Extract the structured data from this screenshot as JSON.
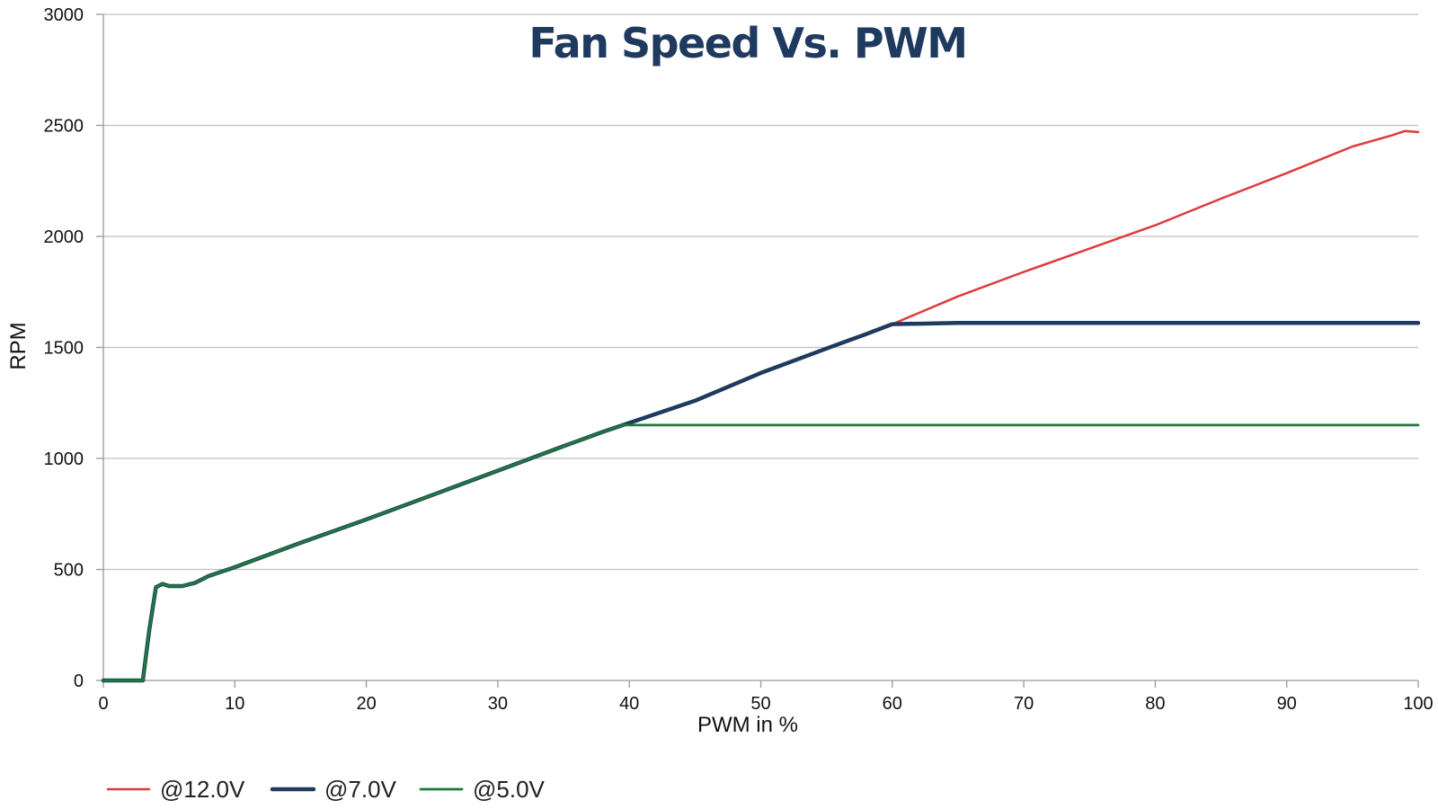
{
  "chart_data": {
    "type": "line",
    "title": "Fan Speed Vs. PWM",
    "xlabel": "PWM in %",
    "ylabel": "RPM",
    "xlim": [
      0,
      100
    ],
    "ylim": [
      0,
      3000
    ],
    "x_ticks": [
      0,
      10,
      20,
      30,
      40,
      50,
      60,
      70,
      80,
      90,
      100
    ],
    "y_ticks": [
      0,
      500,
      1000,
      1500,
      2000,
      2500,
      3000
    ],
    "x_tick_labels": [
      "0",
      "10",
      "20",
      "30",
      "40",
      "50",
      "60",
      "70",
      "80",
      "90",
      "100"
    ],
    "y_tick_labels": [
      "0",
      "500",
      "1000",
      "1500",
      "2000",
      "2500",
      "3000"
    ],
    "grid": "horizontal",
    "legend_position": "bottom-left",
    "colors": {
      "title": "#1f3a5f",
      "grid": "#c0c0c0",
      "axis": "#999999"
    },
    "series": [
      {
        "name": "@12.0V",
        "color": "#e03a3a",
        "x": [
          0,
          2.2,
          3,
          3.5,
          4,
          4.5,
          5,
          6,
          7,
          8,
          10,
          15,
          20,
          25,
          30,
          35,
          38,
          40,
          45,
          50,
          55,
          60,
          65,
          70,
          75,
          80,
          85,
          90,
          95,
          98,
          99,
          100
        ],
        "values": [
          0,
          0,
          0,
          230,
          420,
          435,
          425,
          425,
          440,
          470,
          510,
          620,
          725,
          835,
          945,
          1055,
          1120,
          1160,
          1260,
          1385,
          1495,
          1605,
          1730,
          1840,
          1945,
          2050,
          2170,
          2285,
          2405,
          2455,
          2475,
          2470
        ]
      },
      {
        "name": "@7.0V",
        "color": "#1f3a5f",
        "x": [
          0,
          2.2,
          3,
          3.5,
          4,
          4.5,
          5,
          6,
          7,
          8,
          10,
          15,
          20,
          25,
          30,
          35,
          38,
          40,
          45,
          50,
          55,
          58,
          60,
          65,
          70,
          75,
          80,
          85,
          90,
          95,
          100
        ],
        "values": [
          0,
          0,
          0,
          230,
          420,
          435,
          425,
          425,
          440,
          470,
          510,
          620,
          725,
          835,
          945,
          1055,
          1120,
          1160,
          1260,
          1385,
          1495,
          1560,
          1605,
          1610,
          1610,
          1610,
          1610,
          1610,
          1610,
          1610,
          1610
        ]
      },
      {
        "name": "@5.0V",
        "color": "#1f7a3a",
        "x": [
          0,
          2.2,
          3,
          3.5,
          4,
          4.5,
          5,
          6,
          7,
          8,
          10,
          15,
          20,
          25,
          30,
          35,
          38,
          39.5,
          45,
          50,
          55,
          60,
          65,
          70,
          75,
          80,
          85,
          90,
          95,
          100
        ],
        "values": [
          0,
          0,
          0,
          230,
          420,
          435,
          425,
          425,
          440,
          470,
          510,
          620,
          725,
          835,
          945,
          1055,
          1120,
          1150,
          1150,
          1150,
          1150,
          1150,
          1150,
          1150,
          1150,
          1150,
          1150,
          1150,
          1150,
          1150
        ]
      }
    ]
  }
}
